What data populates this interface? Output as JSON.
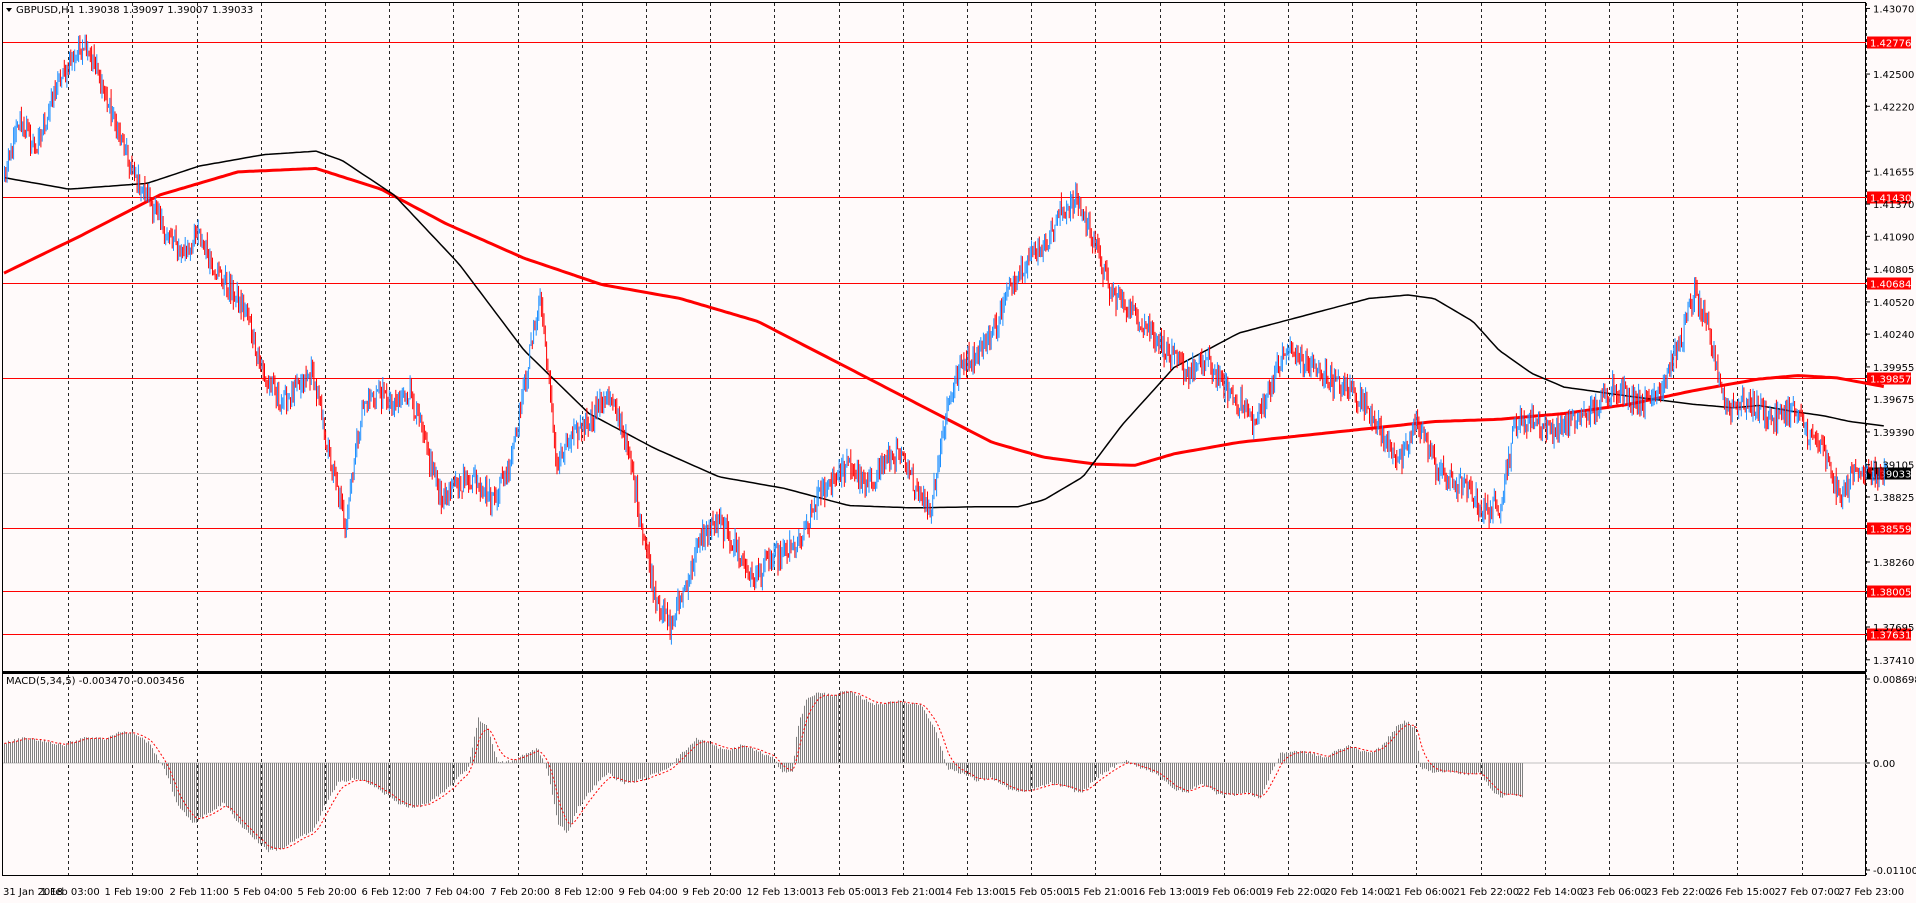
{
  "colors": {
    "background": "#fffafa",
    "frame": "#000000",
    "bull": "#1e90ff",
    "bear": "#ff0000",
    "level_line": "#ff0000",
    "ma_fast": "#000000",
    "ma_slow": "#ff0000",
    "macd_hist": "#808080",
    "macd_signal": "#ff0000",
    "current_price_box": "#000000"
  },
  "price_panel": {
    "title": "GBPUSD,H1  1.39038 1.39097 1.39007 1.39033",
    "toggle_icon": "triangle-down-icon",
    "y_ticks": [
      "1.43070",
      "1.42500",
      "1.42220",
      "1.41655",
      "1.41370",
      "1.41090",
      "1.40805",
      "1.40520",
      "1.40240",
      "1.39955",
      "1.39675",
      "1.39390",
      "1.39105",
      "1.38825",
      "1.38260",
      "1.37695",
      "1.37410"
    ],
    "current_price": "1.39033",
    "levels": [
      {
        "label": "1.42776",
        "value": 1.42776
      },
      {
        "label": "1.41430",
        "value": 1.4143
      },
      {
        "label": "1.40684",
        "value": 1.40684
      },
      {
        "label": "1.39857",
        "value": 1.39857
      },
      {
        "label": "1.38559",
        "value": 1.38559
      },
      {
        "label": "1.38005",
        "value": 1.38005
      },
      {
        "label": "1.37631",
        "value": 1.37631
      }
    ]
  },
  "macd_panel": {
    "title": "MACD(5,34,5) -0.003470 -0.003456",
    "y_ticks": [
      "0.008698",
      "0.00",
      "-0.011002"
    ]
  },
  "x_labels": [
    "31 Jan 2018",
    "1 Feb 03:00",
    "1 Feb 19:00",
    "2 Feb 11:00",
    "5 Feb 04:00",
    "5 Feb 20:00",
    "6 Feb 12:00",
    "7 Feb 04:00",
    "7 Feb 20:00",
    "8 Feb 12:00",
    "9 Feb 04:00",
    "9 Feb 20:00",
    "12 Feb 13:00",
    "13 Feb 05:00",
    "13 Feb 21:00",
    "14 Feb 13:00",
    "15 Feb 05:00",
    "15 Feb 21:00",
    "16 Feb 13:00",
    "19 Feb 06:00",
    "19 Feb 22:00",
    "20 Feb 14:00",
    "21 Feb 06:00",
    "21 Feb 22:00",
    "22 Feb 14:00",
    "23 Feb 06:00",
    "23 Feb 22:00",
    "26 Feb 15:00",
    "27 Feb 07:00",
    "27 Feb 23:00"
  ],
  "chart_data": {
    "type": "candlestick",
    "symbol": "GBPUSD",
    "timeframe": "H1",
    "ylim": [
      1.3733,
      1.431
    ],
    "grid": "vertical dashed lines at each date label",
    "close_path": [
      [
        0,
        1.416
      ],
      [
        12,
        1.421
      ],
      [
        25,
        1.4185
      ],
      [
        37,
        1.423
      ],
      [
        50,
        1.426
      ],
      [
        62,
        1.428
      ],
      [
        75,
        1.424
      ],
      [
        87,
        1.42
      ],
      [
        100,
        1.416
      ],
      [
        112,
        1.414
      ],
      [
        125,
        1.411
      ],
      [
        137,
        1.4095
      ],
      [
        150,
        1.411
      ],
      [
        162,
        1.408
      ],
      [
        175,
        1.406
      ],
      [
        187,
        1.404
      ],
      [
        200,
        1.3985
      ],
      [
        212,
        1.3965
      ],
      [
        225,
        1.3975
      ],
      [
        237,
        1.399
      ],
      [
        250,
        1.3915
      ],
      [
        262,
        1.386
      ],
      [
        275,
        1.396
      ],
      [
        287,
        1.3975
      ],
      [
        300,
        1.396
      ],
      [
        312,
        1.3975
      ],
      [
        325,
        1.392
      ],
      [
        337,
        1.388
      ],
      [
        350,
        1.3895
      ],
      [
        362,
        1.39
      ],
      [
        375,
        1.388
      ],
      [
        387,
        1.3905
      ],
      [
        400,
        1.398
      ],
      [
        412,
        1.406
      ],
      [
        425,
        1.391
      ],
      [
        437,
        1.3935
      ],
      [
        450,
        1.395
      ],
      [
        462,
        1.397
      ],
      [
        475,
        1.3945
      ],
      [
        487,
        1.388
      ],
      [
        500,
        1.38
      ],
      [
        512,
        1.377
      ],
      [
        525,
        1.381
      ],
      [
        537,
        1.385
      ],
      [
        550,
        1.386
      ],
      [
        562,
        1.384
      ],
      [
        575,
        1.381
      ],
      [
        587,
        1.3825
      ],
      [
        600,
        1.3835
      ],
      [
        612,
        1.384
      ],
      [
        625,
        1.388
      ],
      [
        637,
        1.39
      ],
      [
        650,
        1.391
      ],
      [
        662,
        1.389
      ],
      [
        675,
        1.391
      ],
      [
        687,
        1.392
      ],
      [
        700,
        1.3895
      ],
      [
        712,
        1.387
      ],
      [
        725,
        1.396
      ],
      [
        737,
        1.4
      ],
      [
        750,
        1.401
      ],
      [
        762,
        1.403
      ],
      [
        775,
        1.407
      ],
      [
        787,
        1.409
      ],
      [
        800,
        1.41
      ],
      [
        812,
        1.413
      ],
      [
        825,
        1.414
      ],
      [
        837,
        1.411
      ],
      [
        850,
        1.406
      ],
      [
        862,
        1.405
      ],
      [
        875,
        1.4035
      ],
      [
        887,
        1.402
      ],
      [
        900,
        1.4
      ],
      [
        912,
        1.399
      ],
      [
        925,
        1.4
      ],
      [
        937,
        1.398
      ],
      [
        950,
        1.3965
      ],
      [
        962,
        1.3945
      ],
      [
        975,
        1.3985
      ],
      [
        987,
        1.401
      ],
      [
        1000,
        1.4
      ],
      [
        1012,
        1.399
      ],
      [
        1025,
        1.398
      ],
      [
        1037,
        1.3975
      ],
      [
        1050,
        1.396
      ],
      [
        1062,
        1.393
      ],
      [
        1075,
        1.3915
      ],
      [
        1087,
        1.395
      ],
      [
        1100,
        1.391
      ],
      [
        1112,
        1.3895
      ],
      [
        1125,
        1.389
      ],
      [
        1137,
        1.387
      ],
      [
        1150,
        1.3875
      ],
      [
        1162,
        1.3945
      ],
      [
        1175,
        1.395
      ],
      [
        1187,
        1.394
      ],
      [
        1200,
        1.3945
      ],
      [
        1212,
        1.395
      ],
      [
        1225,
        1.396
      ],
      [
        1237,
        1.398
      ],
      [
        1250,
        1.397
      ],
      [
        1262,
        1.3965
      ],
      [
        1275,
        1.398
      ],
      [
        1287,
        1.401
      ],
      [
        1300,
        1.406
      ],
      [
        1312,
        1.402
      ],
      [
        1325,
        1.396
      ],
      [
        1337,
        1.3965
      ],
      [
        1350,
        1.396
      ],
      [
        1362,
        1.395
      ],
      [
        1375,
        1.396
      ],
      [
        1387,
        1.394
      ],
      [
        1400,
        1.392
      ],
      [
        1412,
        1.388
      ],
      [
        1425,
        1.391
      ],
      [
        1437,
        1.39
      ],
      [
        1448,
        1.3903
      ]
    ],
    "close": [],
    "ma_fast_points": [
      [
        0,
        1.416
      ],
      [
        50,
        1.415
      ],
      [
        110,
        1.4155
      ],
      [
        150,
        1.417
      ],
      [
        200,
        1.418
      ],
      [
        240,
        1.4183
      ],
      [
        260,
        1.4175
      ],
      [
        300,
        1.4145
      ],
      [
        350,
        1.4085
      ],
      [
        400,
        1.401
      ],
      [
        450,
        1.3955
      ],
      [
        500,
        1.3925
      ],
      [
        550,
        1.39
      ],
      [
        600,
        1.389
      ],
      [
        650,
        1.3875
      ],
      [
        700,
        1.3873
      ],
      [
        750,
        1.3874
      ],
      [
        780,
        1.3874
      ],
      [
        800,
        1.388
      ],
      [
        830,
        1.39
      ],
      [
        860,
        1.3945
      ],
      [
        900,
        1.3995
      ],
      [
        950,
        1.4025
      ],
      [
        1000,
        1.404
      ],
      [
        1050,
        1.4055
      ],
      [
        1080,
        1.4058
      ],
      [
        1100,
        1.4055
      ],
      [
        1130,
        1.4035
      ],
      [
        1150,
        1.401
      ],
      [
        1175,
        1.399
      ],
      [
        1200,
        1.3978
      ],
      [
        1250,
        1.397
      ],
      [
        1300,
        1.3963
      ],
      [
        1330,
        1.396
      ],
      [
        1350,
        1.3962
      ],
      [
        1375,
        1.3957
      ],
      [
        1400,
        1.3953
      ],
      [
        1420,
        1.3948
      ],
      [
        1448,
        1.3944
      ]
    ],
    "ma_slow_points": [
      [
        0,
        1.4077
      ],
      [
        60,
        1.411
      ],
      [
        120,
        1.4145
      ],
      [
        180,
        1.4165
      ],
      [
        240,
        1.4168
      ],
      [
        290,
        1.415
      ],
      [
        340,
        1.412
      ],
      [
        400,
        1.409
      ],
      [
        460,
        1.4067
      ],
      [
        520,
        1.4055
      ],
      [
        580,
        1.4035
      ],
      [
        640,
        1.4
      ],
      [
        700,
        1.3965
      ],
      [
        760,
        1.393
      ],
      [
        800,
        1.3917
      ],
      [
        840,
        1.3911
      ],
      [
        870,
        1.391
      ],
      [
        900,
        1.392
      ],
      [
        950,
        1.393
      ],
      [
        1000,
        1.3936
      ],
      [
        1050,
        1.3942
      ],
      [
        1100,
        1.3948
      ],
      [
        1150,
        1.395
      ],
      [
        1200,
        1.3955
      ],
      [
        1250,
        1.3963
      ],
      [
        1300,
        1.3975
      ],
      [
        1350,
        1.3985
      ],
      [
        1380,
        1.3988
      ],
      [
        1410,
        1.3986
      ],
      [
        1448,
        1.3978
      ]
    ],
    "macd": {
      "params": "5,34,5",
      "main": -0.00347,
      "signal": -0.003456,
      "ylim": [
        -0.011002,
        0.008698
      ],
      "hist_path": [
        [
          0,
          0.002
        ],
        [
          20,
          0.0025
        ],
        [
          40,
          0.0022
        ],
        [
          60,
          0.0018
        ],
        [
          80,
          0.0026
        ],
        [
          100,
          0.0024
        ],
        [
          115,
          0.0031
        ],
        [
          130,
          0.003
        ],
        [
          145,
          0.002
        ],
        [
          160,
          -0.0005
        ],
        [
          175,
          -0.0045
        ],
        [
          190,
          -0.006
        ],
        [
          205,
          -0.005
        ],
        [
          220,
          -0.004
        ],
        [
          235,
          -0.006
        ],
        [
          250,
          -0.0075
        ],
        [
          265,
          -0.0088
        ],
        [
          280,
          -0.0085
        ],
        [
          295,
          -0.0075
        ],
        [
          310,
          -0.0068
        ],
        [
          320,
          -0.0045
        ],
        [
          335,
          -0.002
        ],
        [
          350,
          -0.0015
        ],
        [
          365,
          -0.002
        ],
        [
          380,
          -0.003
        ],
        [
          395,
          -0.004
        ],
        [
          410,
          -0.0045
        ],
        [
          425,
          -0.004
        ],
        [
          440,
          -0.003
        ],
        [
          455,
          -0.0015
        ],
        [
          465,
          -0.0005
        ],
        [
          475,
          0.0045
        ],
        [
          485,
          0.0035
        ],
        [
          495,
          0.0
        ],
        [
          510,
          0.0002
        ],
        [
          525,
          0.001
        ],
        [
          535,
          0.0015
        ],
        [
          545,
          -0.001
        ],
        [
          555,
          -0.006
        ],
        [
          565,
          -0.007
        ],
        [
          575,
          -0.0045
        ],
        [
          590,
          -0.0025
        ],
        [
          605,
          -0.001
        ],
        [
          620,
          -0.002
        ],
        [
          635,
          -0.0018
        ],
        [
          650,
          -0.0012
        ],
        [
          665,
          -0.0005
        ],
        [
          680,
          0.001
        ],
        [
          695,
          0.0025
        ],
        [
          710,
          0.0018
        ],
        [
          725,
          0.0012
        ],
        [
          740,
          0.0018
        ],
        [
          755,
          0.0012
        ],
        [
          770,
          0.0005
        ],
        [
          780,
          -0.0008
        ],
        [
          790,
          -0.001
        ],
        [
          795,
          0.0035
        ],
        [
          805,
          0.0065
        ],
        [
          815,
          0.007
        ],
        [
          830,
          0.0068
        ],
        [
          845,
          0.0072
        ],
        [
          860,
          0.0065
        ],
        [
          875,
          0.0058
        ],
        [
          890,
          0.0062
        ],
        [
          905,
          0.006
        ],
        [
          920,
          0.0058
        ],
        [
          935,
          0.003
        ],
        [
          945,
          -0.0005
        ],
        [
          960,
          -0.001
        ],
        [
          975,
          -0.0018
        ],
        [
          990,
          -0.0015
        ],
        [
          1005,
          -0.0025
        ],
        [
          1020,
          -0.003
        ],
        [
          1035,
          -0.0025
        ],
        [
          1050,
          -0.002
        ],
        [
          1065,
          -0.0025
        ],
        [
          1080,
          -0.003
        ],
        [
          1095,
          -0.0015
        ],
        [
          1110,
          -0.0005
        ],
        [
          1125,
          0.0002
        ],
        [
          1140,
          -0.0005
        ],
        [
          1155,
          -0.001
        ],
        [
          1170,
          -0.0025
        ],
        [
          1185,
          -0.003
        ],
        [
          1200,
          -0.002
        ],
        [
          1215,
          -0.003
        ],
        [
          1230,
          -0.0032
        ],
        [
          1245,
          -0.003
        ],
        [
          1260,
          -0.0035
        ],
        [
          1270,
          -0.001
        ],
        [
          1280,
          0.001
        ],
        [
          1295,
          0.0012
        ],
        [
          1310,
          0.001
        ],
        [
          1325,
          0.0005
        ],
        [
          1335,
          0.0012
        ],
        [
          1350,
          0.0018
        ],
        [
          1365,
          0.001
        ],
        [
          1380,
          0.0015
        ],
        [
          1395,
          0.0035
        ],
        [
          1405,
          0.0042
        ],
        [
          1415,
          0.0035
        ],
        [
          1420,
          -0.0005
        ],
        [
          1435,
          -0.001
        ],
        [
          1450,
          -0.0008
        ],
        [
          1465,
          -0.0012
        ],
        [
          1480,
          -0.001
        ],
        [
          1490,
          -0.0025
        ],
        [
          1500,
          -0.0035
        ],
        [
          1510,
          -0.003
        ],
        [
          1522,
          -0.0035
        ]
      ]
    }
  }
}
